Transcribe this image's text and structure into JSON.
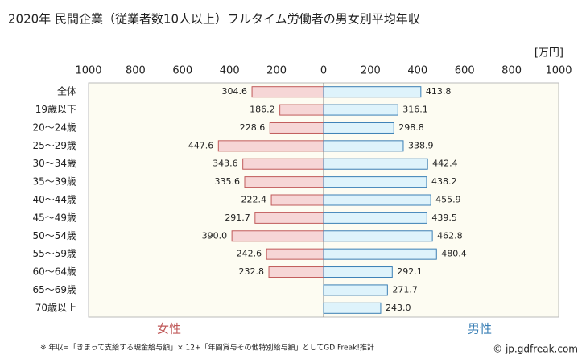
{
  "chart_data": {
    "type": "butterfly",
    "title": "2020年 民間企業（従業者数10人以上）フルタイム労働者の男女別平均年収",
    "unit_label": "[万円]",
    "categories": [
      "全体",
      "19歳以下",
      "20～24歳",
      "25～29歳",
      "30～34歳",
      "35～39歳",
      "40～44歳",
      "45～49歳",
      "50～54歳",
      "55～59歳",
      "60～64歳",
      "65～69歳",
      "70歳以上"
    ],
    "series": [
      {
        "name": "女性",
        "color": "#f6d6d6",
        "edge": "#c05a5a",
        "side": "left",
        "values": [
          304.6,
          186.2,
          228.6,
          447.6,
          343.6,
          335.6,
          222.4,
          291.7,
          390.0,
          242.6,
          232.8,
          null,
          null
        ],
        "value_labels": [
          "304.6",
          "186.2",
          "228.6",
          "447.6",
          "343.6",
          "335.6",
          "222.4",
          "291.7",
          "390.0",
          "242.6",
          "232.8",
          null,
          null
        ]
      },
      {
        "name": "男性",
        "color": "#def3fb",
        "edge": "#3a7fb5",
        "side": "right",
        "values": [
          413.8,
          316.1,
          298.8,
          338.9,
          442.4,
          438.2,
          455.9,
          439.5,
          462.8,
          480.4,
          292.1,
          271.7,
          243.0
        ],
        "value_labels": [
          "413.8",
          "316.1",
          "298.8",
          "338.9",
          "442.4",
          "438.2",
          "455.9",
          "439.5",
          "462.8",
          "480.4",
          "292.1",
          "271.7",
          "243.0"
        ]
      }
    ],
    "xlim": [
      -1000,
      1000
    ],
    "xticks": [
      {
        "value": -1000,
        "label": "1000"
      },
      {
        "value": -800,
        "label": "800"
      },
      {
        "value": -600,
        "label": "600"
      },
      {
        "value": -400,
        "label": "400"
      },
      {
        "value": -200,
        "label": "200"
      },
      0,
      200,
      400,
      600,
      800,
      1000
    ],
    "footnote": "※ 年収=「きまって支給する現金給与額」× 12+「年間賞与その他特別給与額」としてGD Freak!推計",
    "source": "© jp.gdfreak.com"
  }
}
